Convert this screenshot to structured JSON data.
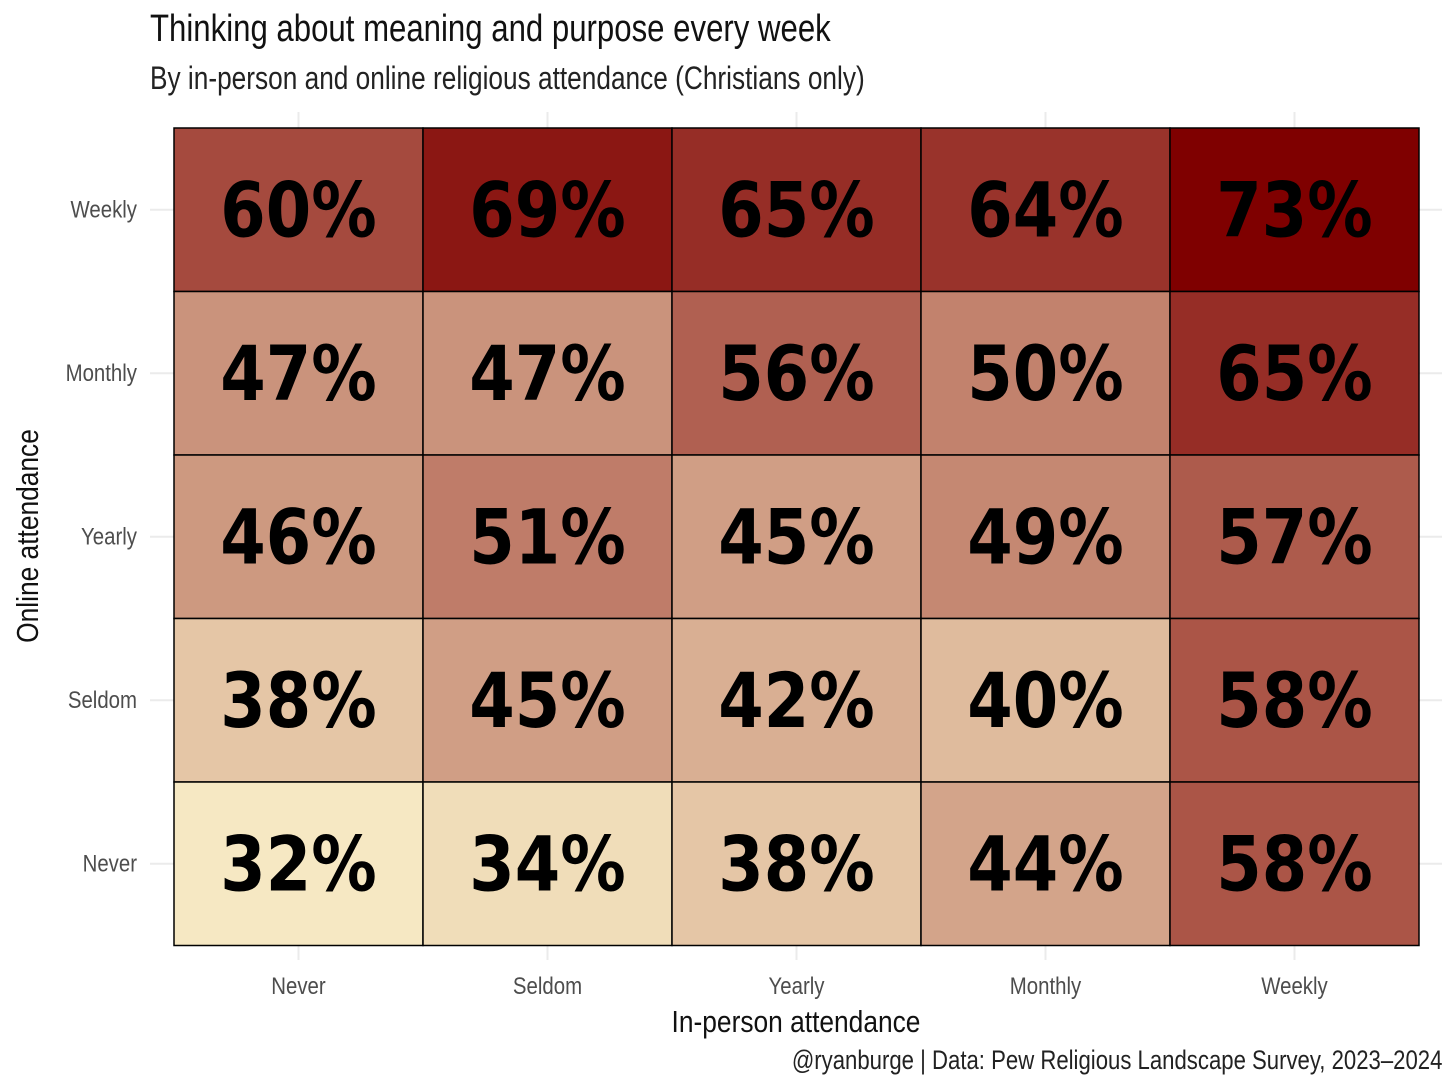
{
  "title": "Thinking about meaning and purpose every week",
  "subtitle": "By in-person and online religious attendance (Christians only)",
  "caption": "@ryanburge | Data: Pew Religious Landscape Survey, 2023–2024",
  "chart_data": {
    "type": "heatmap",
    "title": "Thinking about meaning and purpose every week",
    "subtitle": "By in-person and online religious attendance (Christians only)",
    "xlabel": "In-person attendance",
    "ylabel": "Online attendance",
    "x_categories": [
      "Never",
      "Seldom",
      "Yearly",
      "Monthly",
      "Weekly"
    ],
    "y_categories": [
      "Weekly",
      "Monthly",
      "Yearly",
      "Seldom",
      "Never"
    ],
    "values": [
      [
        60,
        69,
        65,
        64,
        73
      ],
      [
        47,
        47,
        56,
        50,
        65
      ],
      [
        46,
        51,
        45,
        49,
        57
      ],
      [
        38,
        45,
        42,
        40,
        58
      ],
      [
        32,
        34,
        38,
        44,
        58
      ]
    ],
    "labels": [
      [
        "60%",
        "69%",
        "65%",
        "64%",
        "73%"
      ],
      [
        "47%",
        "47%",
        "56%",
        "50%",
        "65%"
      ],
      [
        "46%",
        "51%",
        "45%",
        "49%",
        "57%"
      ],
      [
        "38%",
        "45%",
        "42%",
        "40%",
        "58%"
      ],
      [
        "32%",
        "34%",
        "38%",
        "44%",
        "58%"
      ]
    ],
    "color_low": "#f6e8c3",
    "color_high": "#7f0000",
    "value_range": [
      32,
      73
    ],
    "legend": "none",
    "grid": true
  }
}
